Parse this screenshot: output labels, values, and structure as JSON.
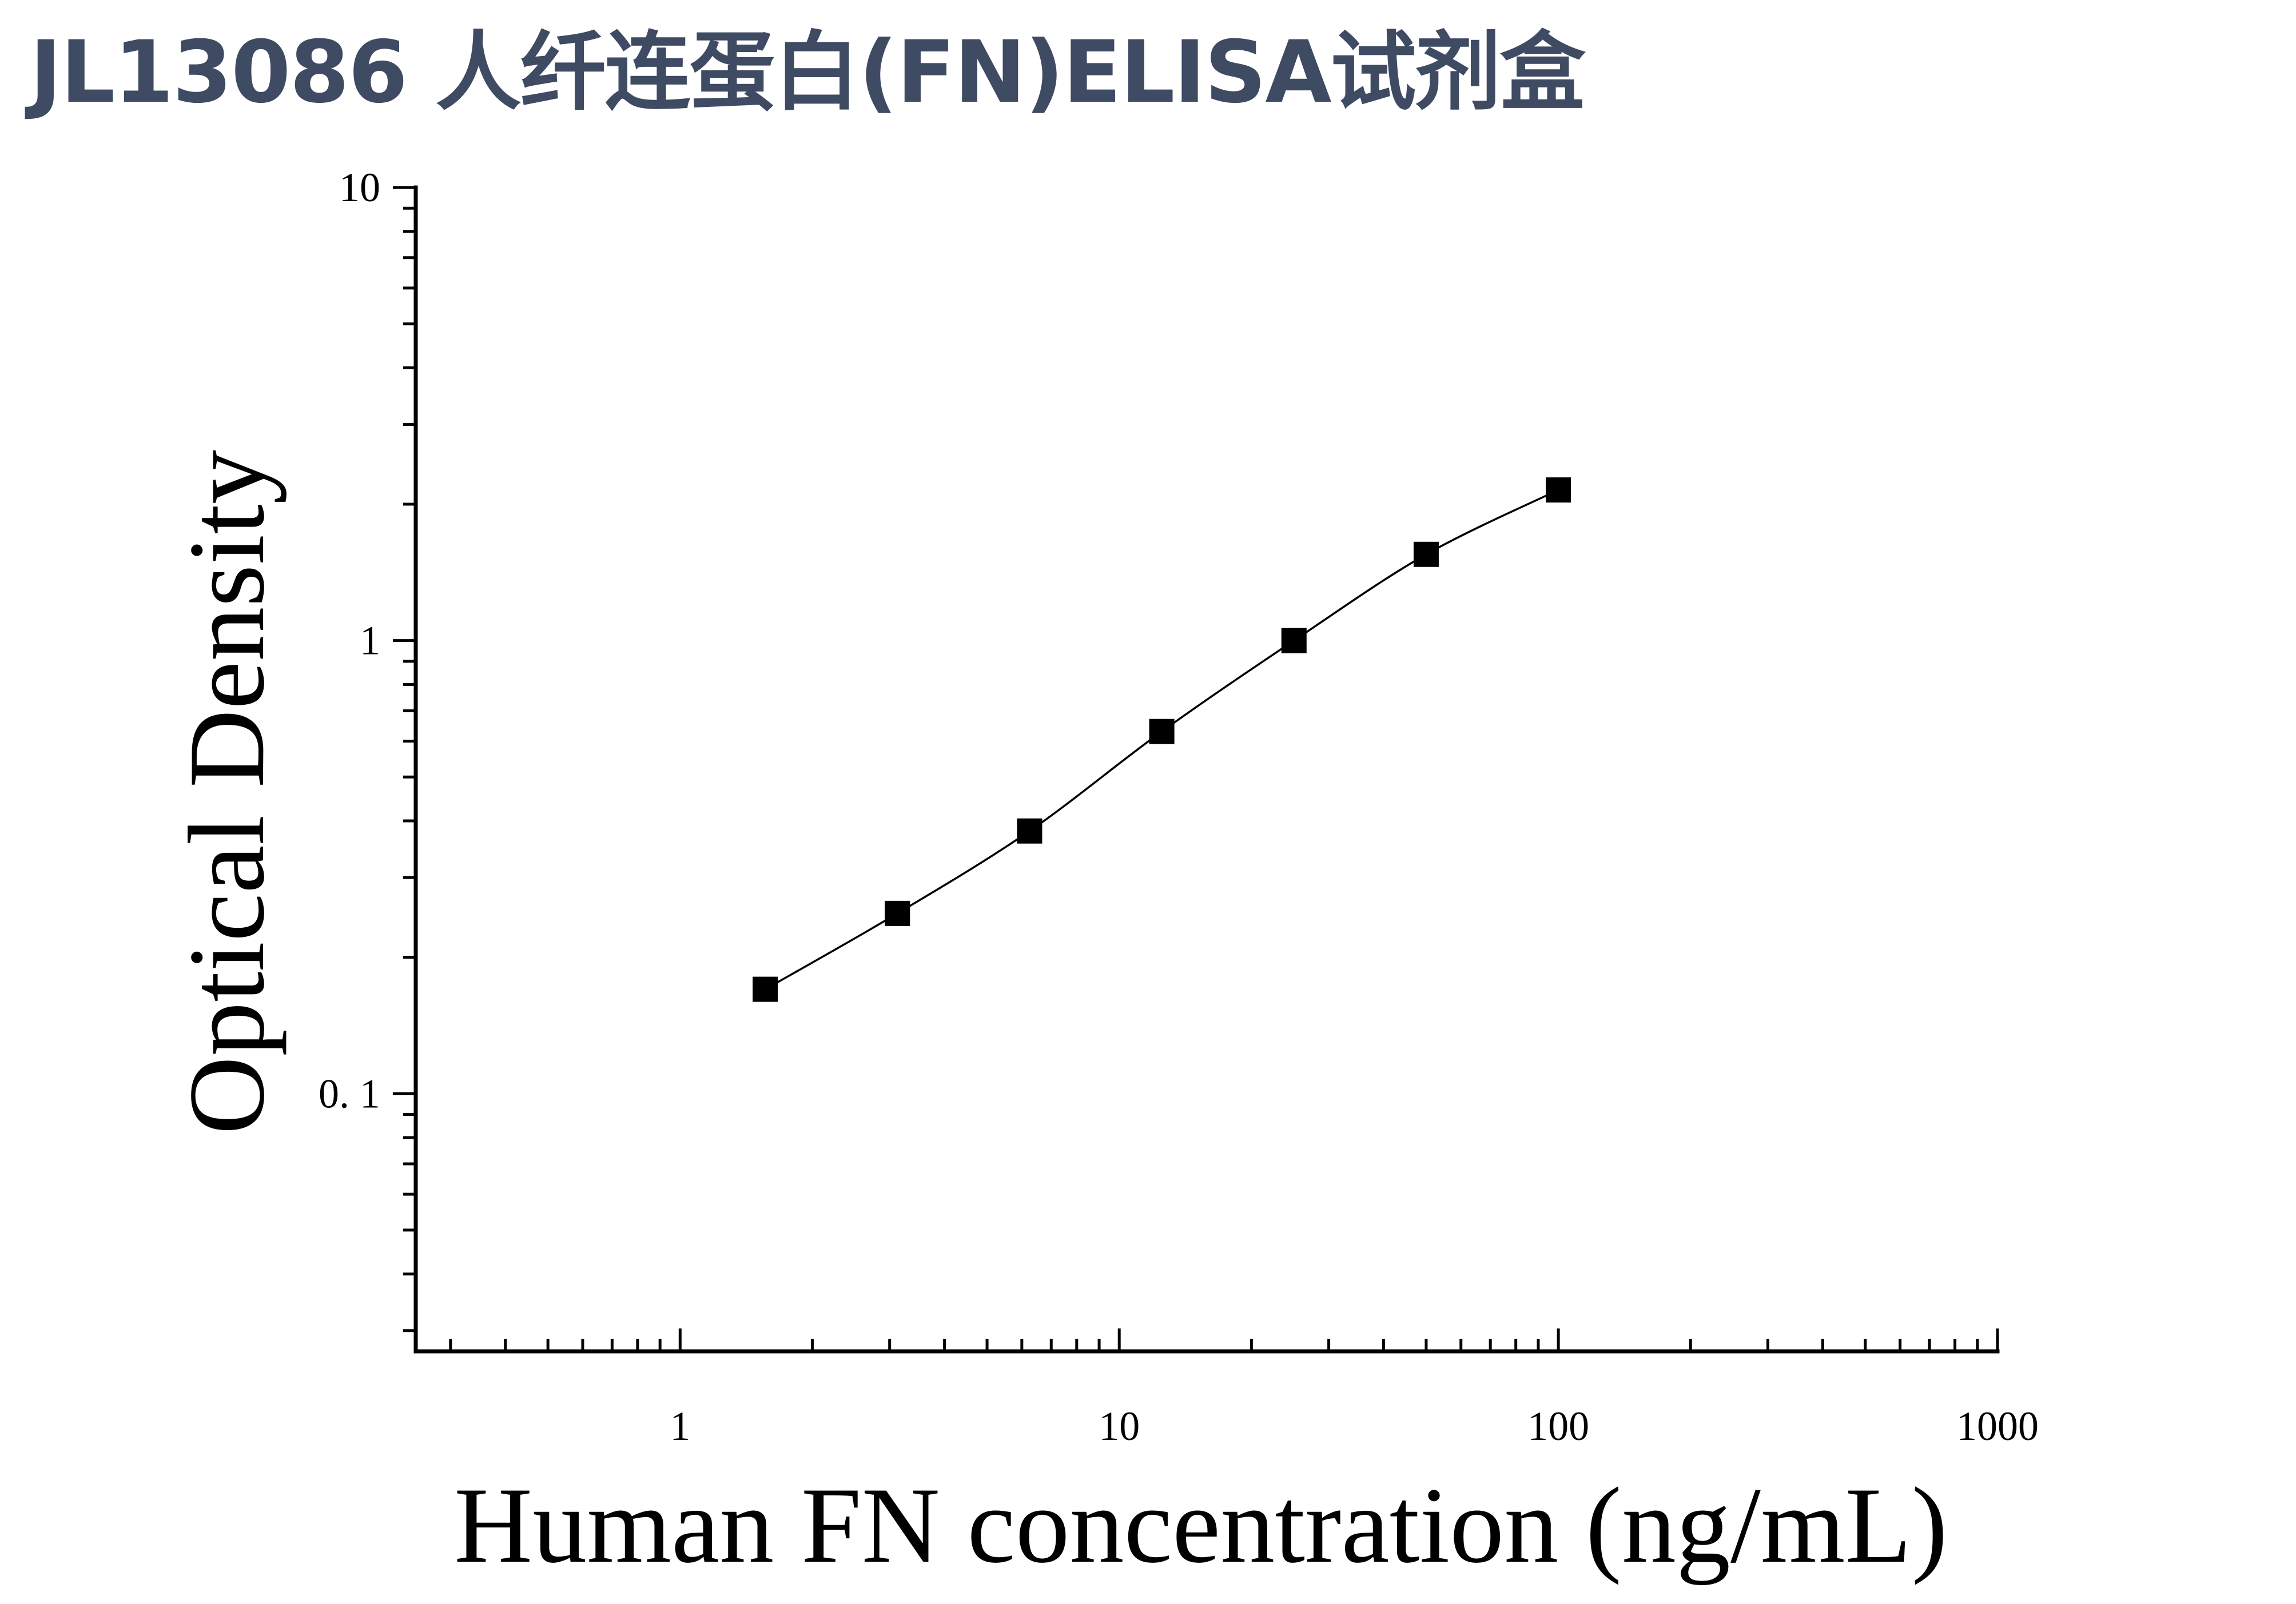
{
  "page": {
    "title": "JL13086 人纤连蛋白(FN)ELISA试剂盒"
  },
  "colors": {
    "title": "#3f4a63",
    "axis": "#000000",
    "marker": "#000000",
    "curve": "#000000"
  },
  "chart_data": {
    "type": "scatter",
    "title": "",
    "xlabel": "Human FN concentration (ng/mL)",
    "ylabel": "Optical Density",
    "x_scale": "log",
    "y_scale": "log",
    "xlim": [
      0.25,
      1000
    ],
    "ylim": [
      0.027,
      10
    ],
    "grid": false,
    "x_ticks": [
      {
        "value": 1,
        "label": "1"
      },
      {
        "value": 10,
        "label": "10"
      },
      {
        "value": 100,
        "label": "100"
      },
      {
        "value": 1000,
        "label": "1000"
      }
    ],
    "y_ticks": [
      {
        "value": 0.1,
        "label": "0. 1"
      },
      {
        "value": 1,
        "label": "1"
      },
      {
        "value": 10,
        "label": "10"
      }
    ],
    "series": [
      {
        "marker": "square",
        "fit_line": true,
        "x": [
          1.5625,
          3.125,
          6.25,
          12.5,
          25,
          50,
          100
        ],
        "y": [
          0.17,
          0.25,
          0.38,
          0.63,
          1.0,
          1.55,
          2.15
        ]
      }
    ]
  }
}
